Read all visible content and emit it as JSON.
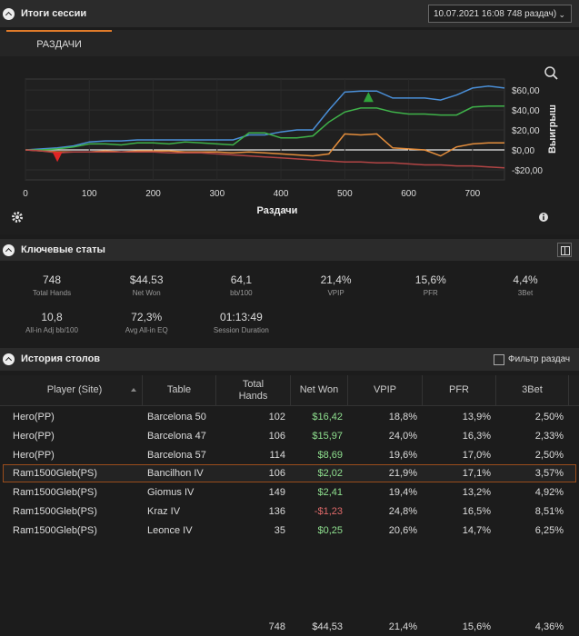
{
  "header": {
    "title": "Итоги сессии",
    "session": "10.07.2021 16:08 748 раздач)"
  },
  "tab": "РАЗДАЧИ",
  "chart_data": {
    "type": "line",
    "x_label": "Раздачи",
    "y_label": "Выигрыш",
    "x": [
      0,
      25,
      50,
      75,
      100,
      125,
      150,
      175,
      200,
      225,
      250,
      275,
      300,
      325,
      350,
      375,
      400,
      425,
      450,
      475,
      500,
      525,
      550,
      575,
      600,
      625,
      650,
      675,
      700,
      725,
      750
    ],
    "series": [
      {
        "color": "#4a8fd8",
        "values": [
          0,
          1,
          2,
          4,
          8,
          9,
          9,
          10,
          10,
          10,
          10,
          10,
          10,
          10,
          15,
          15,
          18,
          20,
          20,
          40,
          58,
          59,
          59,
          52,
          52,
          52,
          50,
          55,
          62,
          64,
          62
        ]
      },
      {
        "color": "#3fb34a",
        "values": [
          0,
          0,
          1,
          3,
          6,
          6,
          5,
          7,
          7,
          6,
          8,
          7,
          6,
          5,
          17,
          17,
          12,
          12,
          14,
          28,
          38,
          42,
          42,
          38,
          36,
          36,
          35,
          35,
          43,
          44,
          44
        ]
      },
      {
        "color": "#e58e3c",
        "values": [
          0,
          -1,
          -2,
          -2,
          -2,
          -1,
          -2,
          -1,
          -1,
          -1,
          -2,
          -2,
          -2,
          -3,
          -2,
          -3,
          -4,
          -5,
          -6,
          -4,
          16,
          15,
          16,
          2,
          1,
          0,
          -6,
          3,
          6,
          7,
          7
        ]
      },
      {
        "color": "#b34545",
        "values": [
          0,
          -1,
          -3,
          -2,
          -2,
          -2,
          -2,
          -2,
          -2,
          -3,
          -3,
          -3,
          -4,
          -5,
          -6,
          -7,
          -8,
          -9,
          -10,
          -11,
          -12,
          -12,
          -13,
          -13,
          -14,
          -15,
          -15,
          -16,
          -16,
          -17,
          -18
        ]
      }
    ],
    "markers": [
      {
        "x": 50,
        "y": -7,
        "color": "#e02525",
        "shape": "down"
      },
      {
        "x": 537,
        "y": 53,
        "color": "#2fa33a",
        "shape": "up"
      }
    ],
    "xlim": [
      0,
      750
    ],
    "ylim": [
      -30,
      71
    ],
    "xticks": [
      0,
      100,
      200,
      300,
      400,
      500,
      600,
      700
    ],
    "yticks": [
      {
        "value": -20,
        "label": "-$20,00"
      },
      {
        "value": 0,
        "label": "$0,00"
      },
      {
        "value": 20,
        "label": "$20,00"
      },
      {
        "value": 40,
        "label": "$40,00"
      },
      {
        "value": 60,
        "label": "$60,00"
      }
    ],
    "grid": true
  },
  "key_stats": {
    "title": "Ключевые статы",
    "items": [
      {
        "value": "748",
        "label": "Total Hands"
      },
      {
        "value": "$44.53",
        "label": "Net Won"
      },
      {
        "value": "64,1",
        "label": "bb/100"
      },
      {
        "value": "21,4%",
        "label": "VPIP"
      },
      {
        "value": "15,6%",
        "label": "PFR"
      },
      {
        "value": "4,4%",
        "label": "3Bet"
      },
      {
        "value": "10,8",
        "label": "All-in Adj bb/100"
      },
      {
        "value": "72,3%",
        "label": "Avg All-in EQ"
      },
      {
        "value": "01:13:49",
        "label": "Session Duration"
      }
    ]
  },
  "history": {
    "title": "История столов",
    "filter": "Фильтр раздач",
    "columns": [
      "Player (Site)",
      "Table",
      "Total Hands",
      "Net Won",
      "VPIP",
      "PFR",
      "3Bet"
    ],
    "rows": [
      [
        "Hero(PP)",
        "Barcelona 50",
        "102",
        "$16,42",
        "18,8%",
        "13,9%",
        "2,50%"
      ],
      [
        "Hero(PP)",
        "Barcelona 47",
        "106",
        "$15,97",
        "24,0%",
        "16,3%",
        "2,33%"
      ],
      [
        "Hero(PP)",
        "Barcelona 57",
        "114",
        "$8,69",
        "19,6%",
        "17,0%",
        "2,50%"
      ],
      [
        "Ram1500Gleb(PS)",
        "Bancilhon IV",
        "106",
        "$2,02",
        "21,9%",
        "17,1%",
        "3,57%"
      ],
      [
        "Ram1500Gleb(PS)",
        "Giomus IV",
        "149",
        "$2,41",
        "19,4%",
        "13,2%",
        "4,92%"
      ],
      [
        "Ram1500Gleb(PS)",
        "Kraz IV",
        "136",
        "-$1,23",
        "24,8%",
        "16,5%",
        "8,51%"
      ],
      [
        "Ram1500Gleb(PS)",
        "Leonce IV",
        "35",
        "$0,25",
        "20,6%",
        "14,7%",
        "6,25%"
      ]
    ],
    "selected_row": 3,
    "totals": [
      null,
      null,
      "748",
      "$44,53",
      "21,4%",
      "15,6%",
      "4,36%"
    ]
  }
}
